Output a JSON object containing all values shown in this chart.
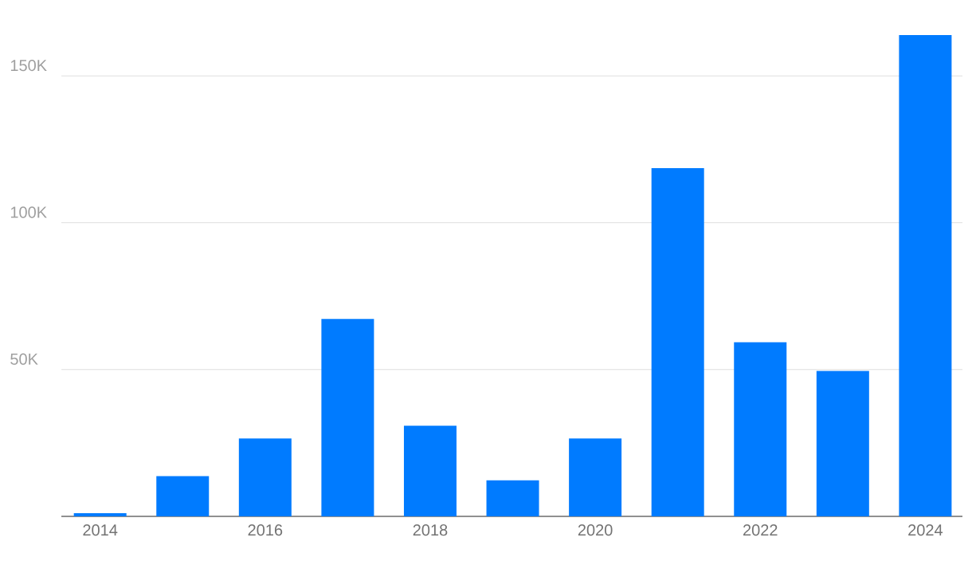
{
  "chart_data": {
    "type": "bar",
    "categories": [
      "2014",
      null,
      "2016",
      null,
      "2018",
      null,
      "2020",
      null,
      "2022",
      null,
      "2024"
    ],
    "values": [
      1100,
      13700,
      26500,
      67200,
      30900,
      12300,
      26500,
      118600,
      59300,
      49500,
      163900
    ],
    "color": "#007bff",
    "ylim": [
      0,
      163900
    ],
    "yticks": [
      {
        "value": 0,
        "label": null
      },
      {
        "value": 50000,
        "label": "50K"
      },
      {
        "value": 100000,
        "label": "100K"
      },
      {
        "value": 150000,
        "label": "150K"
      }
    ],
    "grid": "y"
  }
}
